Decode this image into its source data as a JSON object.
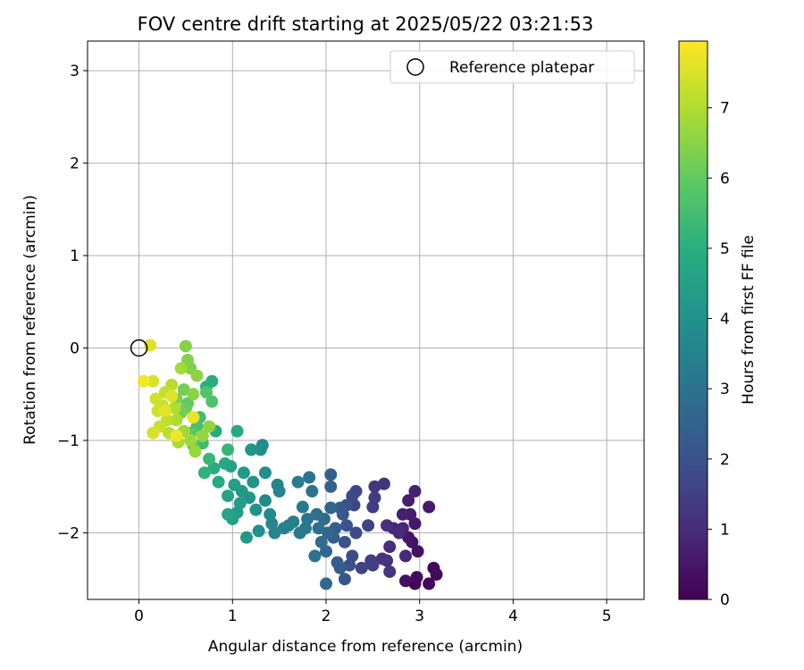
{
  "chart_data": {
    "type": "scatter",
    "title": "FOV centre drift starting at 2025/05/22 03:21:53",
    "xlabel": "Angular distance from reference (arcmin)",
    "ylabel": "Rotation from reference (arcmin)",
    "xlim": [
      -0.55,
      5.4
    ],
    "ylim": [
      -2.72,
      3.32
    ],
    "xticks": [
      0,
      1,
      2,
      3,
      4,
      5
    ],
    "yticks": [
      -2,
      -1,
      0,
      1,
      2,
      3
    ],
    "grid": true,
    "legend": {
      "position": "upper-right",
      "entries": [
        "Reference platepar"
      ]
    },
    "reference_point": {
      "x": 0,
      "y": 0
    },
    "colorbar": {
      "label": "Hours from first FF file",
      "colormap": "viridis",
      "range": [
        0,
        7.95
      ],
      "ticks": [
        0,
        1,
        2,
        3,
        4,
        5,
        6,
        7
      ]
    },
    "points": [
      [
        2.95,
        -2.55,
        0.05
      ],
      [
        3.1,
        -2.55,
        0.1
      ],
      [
        3.15,
        -2.38,
        0.15
      ],
      [
        3.18,
        -2.45,
        0.2
      ],
      [
        2.97,
        -2.48,
        0.25
      ],
      [
        2.85,
        -2.52,
        0.3
      ],
      [
        2.98,
        -2.2,
        0.35
      ],
      [
        2.92,
        -2.1,
        0.4
      ],
      [
        2.88,
        -2.05,
        0.45
      ],
      [
        2.95,
        -1.9,
        0.5
      ],
      [
        3.1,
        -1.72,
        0.55
      ],
      [
        2.9,
        -1.8,
        0.6
      ],
      [
        2.88,
        -1.65,
        0.65
      ],
      [
        2.82,
        -1.8,
        0.7
      ],
      [
        2.95,
        -1.55,
        0.75
      ],
      [
        2.72,
        -1.95,
        0.8
      ],
      [
        2.82,
        -1.95,
        0.85
      ],
      [
        2.85,
        -2.25,
        0.9
      ],
      [
        2.78,
        -2.0,
        0.95
      ],
      [
        2.68,
        -2.15,
        1.0
      ],
      [
        2.65,
        -1.92,
        1.05
      ],
      [
        2.65,
        -2.3,
        1.1
      ],
      [
        2.62,
        -1.47,
        1.15
      ],
      [
        2.6,
        -2.28,
        1.2
      ],
      [
        2.68,
        -2.42,
        1.25
      ],
      [
        2.52,
        -1.5,
        1.3
      ],
      [
        2.52,
        -1.62,
        1.35
      ],
      [
        2.5,
        -1.72,
        1.4
      ],
      [
        2.48,
        -2.3,
        1.45
      ],
      [
        2.5,
        -2.35,
        1.5
      ],
      [
        2.45,
        -1.92,
        1.55
      ],
      [
        2.38,
        -2.38,
        1.6
      ],
      [
        2.32,
        -1.55,
        1.65
      ],
      [
        2.3,
        -1.7,
        1.7
      ],
      [
        2.28,
        -1.6,
        1.75
      ],
      [
        2.32,
        -2.0,
        1.8
      ],
      [
        2.28,
        -2.25,
        1.85
      ],
      [
        2.25,
        -2.35,
        1.9
      ],
      [
        2.22,
        -1.7,
        1.95
      ],
      [
        2.22,
        -1.92,
        2.0
      ],
      [
        2.2,
        -2.1,
        2.05
      ],
      [
        2.2,
        -2.5,
        2.1
      ],
      [
        2.18,
        -1.8,
        2.15
      ],
      [
        2.15,
        -1.73,
        2.2
      ],
      [
        2.15,
        -2.38,
        2.25
      ],
      [
        2.12,
        -2.32,
        2.3
      ],
      [
        2.1,
        -1.95,
        2.35
      ],
      [
        2.08,
        -2.05,
        2.4
      ],
      [
        2.05,
        -1.37,
        2.45
      ],
      [
        2.05,
        -1.5,
        2.5
      ],
      [
        2.05,
        -1.73,
        2.55
      ],
      [
        2.02,
        -2.0,
        2.6
      ],
      [
        2.0,
        -2.2,
        2.65
      ],
      [
        2.0,
        -2.55,
        2.7
      ],
      [
        1.98,
        -1.85,
        2.75
      ],
      [
        1.95,
        -2.1,
        2.8
      ],
      [
        1.92,
        -1.95,
        2.85
      ],
      [
        1.9,
        -1.8,
        2.9
      ],
      [
        1.88,
        -2.25,
        2.95
      ],
      [
        1.85,
        -1.55,
        3.0
      ],
      [
        1.82,
        -1.4,
        3.05
      ],
      [
        1.8,
        -1.85,
        3.1
      ],
      [
        1.78,
        -1.95,
        3.15
      ],
      [
        1.75,
        -1.72,
        3.2
      ],
      [
        1.72,
        -2.0,
        3.25
      ],
      [
        1.7,
        -1.45,
        3.3
      ],
      [
        1.65,
        -1.88,
        3.35
      ],
      [
        1.6,
        -1.92,
        3.4
      ],
      [
        1.55,
        -1.95,
        3.45
      ],
      [
        1.5,
        -1.55,
        3.5
      ],
      [
        1.48,
        -1.48,
        3.55
      ],
      [
        1.45,
        -2.0,
        3.6
      ],
      [
        1.42,
        -1.9,
        3.65
      ],
      [
        1.4,
        -1.8,
        3.7
      ],
      [
        1.35,
        -1.65,
        3.75
      ],
      [
        1.35,
        -1.35,
        3.8
      ],
      [
        1.32,
        -1.05,
        3.85
      ],
      [
        1.3,
        -1.1,
        3.9
      ],
      [
        1.28,
        -1.98,
        3.95
      ],
      [
        1.25,
        -1.75,
        4.0
      ],
      [
        1.22,
        -1.45,
        4.05
      ],
      [
        1.2,
        -1.1,
        4.1
      ],
      [
        1.18,
        -1.62,
        4.15
      ],
      [
        1.15,
        -2.05,
        4.2
      ],
      [
        1.12,
        -1.35,
        4.25
      ],
      [
        1.1,
        -1.55,
        4.3
      ],
      [
        1.08,
        -1.68,
        4.35
      ],
      [
        1.05,
        -1.78,
        4.4
      ],
      [
        1.02,
        -1.48,
        4.45
      ],
      [
        1.0,
        -1.85,
        4.5
      ],
      [
        0.98,
        -1.28,
        4.55
      ],
      [
        0.95,
        -1.6,
        4.6
      ],
      [
        0.95,
        -1.8,
        4.65
      ],
      [
        0.92,
        -1.25,
        4.7
      ],
      [
        1.05,
        -0.9,
        4.75
      ],
      [
        0.85,
        -1.45,
        4.8
      ],
      [
        0.82,
        -0.9,
        4.85
      ],
      [
        0.8,
        -1.3,
        4.9
      ],
      [
        0.78,
        -0.36,
        4.95
      ],
      [
        0.72,
        -0.42,
        5.0
      ],
      [
        0.7,
        -1.35,
        5.1
      ],
      [
        0.95,
        -1.1,
        5.2
      ],
      [
        0.75,
        -1.2,
        5.3
      ],
      [
        0.68,
        -1.03,
        5.4
      ],
      [
        0.65,
        -0.75,
        5.5
      ],
      [
        0.62,
        -0.85,
        5.6
      ],
      [
        0.78,
        -0.58,
        5.7
      ],
      [
        0.72,
        -0.48,
        5.75
      ],
      [
        0.58,
        -1.05,
        5.8
      ],
      [
        0.55,
        -0.92,
        5.9
      ],
      [
        0.52,
        -0.6,
        6.0
      ],
      [
        0.5,
        -0.65,
        6.1
      ],
      [
        0.48,
        -0.45,
        6.2
      ],
      [
        0.45,
        -0.7,
        6.25
      ],
      [
        0.4,
        -0.55,
        6.3
      ],
      [
        0.55,
        -0.22,
        6.35
      ],
      [
        0.52,
        -0.13,
        6.4
      ],
      [
        0.5,
        0.02,
        6.45
      ],
      [
        0.58,
        -0.5,
        6.5
      ],
      [
        0.62,
        -0.3,
        6.55
      ],
      [
        0.75,
        -0.85,
        6.6
      ],
      [
        0.68,
        -0.95,
        6.65
      ],
      [
        0.6,
        -1.12,
        6.7
      ],
      [
        0.55,
        -1.0,
        6.75
      ],
      [
        0.48,
        -0.9,
        6.8
      ],
      [
        0.45,
        -0.22,
        6.85
      ],
      [
        0.42,
        -1.02,
        6.9
      ],
      [
        0.4,
        -0.78,
        6.95
      ],
      [
        0.38,
        -0.65,
        7.0
      ],
      [
        0.35,
        -0.4,
        7.05
      ],
      [
        0.32,
        -0.92,
        7.1
      ],
      [
        0.3,
        -0.78,
        7.15
      ],
      [
        0.28,
        -0.48,
        7.2
      ],
      [
        0.25,
        -0.62,
        7.25
      ],
      [
        0.22,
        -0.85,
        7.3
      ],
      [
        0.2,
        -0.68,
        7.35
      ],
      [
        0.18,
        -0.55,
        7.4
      ],
      [
        0.15,
        -0.92,
        7.45
      ],
      [
        0.15,
        -0.36,
        7.5
      ],
      [
        0.12,
        0.03,
        7.55
      ],
      [
        0.35,
        -0.52,
        7.6
      ],
      [
        0.28,
        -0.68,
        7.65
      ],
      [
        0.58,
        -0.75,
        7.7
      ],
      [
        0.4,
        -0.95,
        7.75
      ],
      [
        0.05,
        -0.36,
        7.85
      ]
    ]
  }
}
